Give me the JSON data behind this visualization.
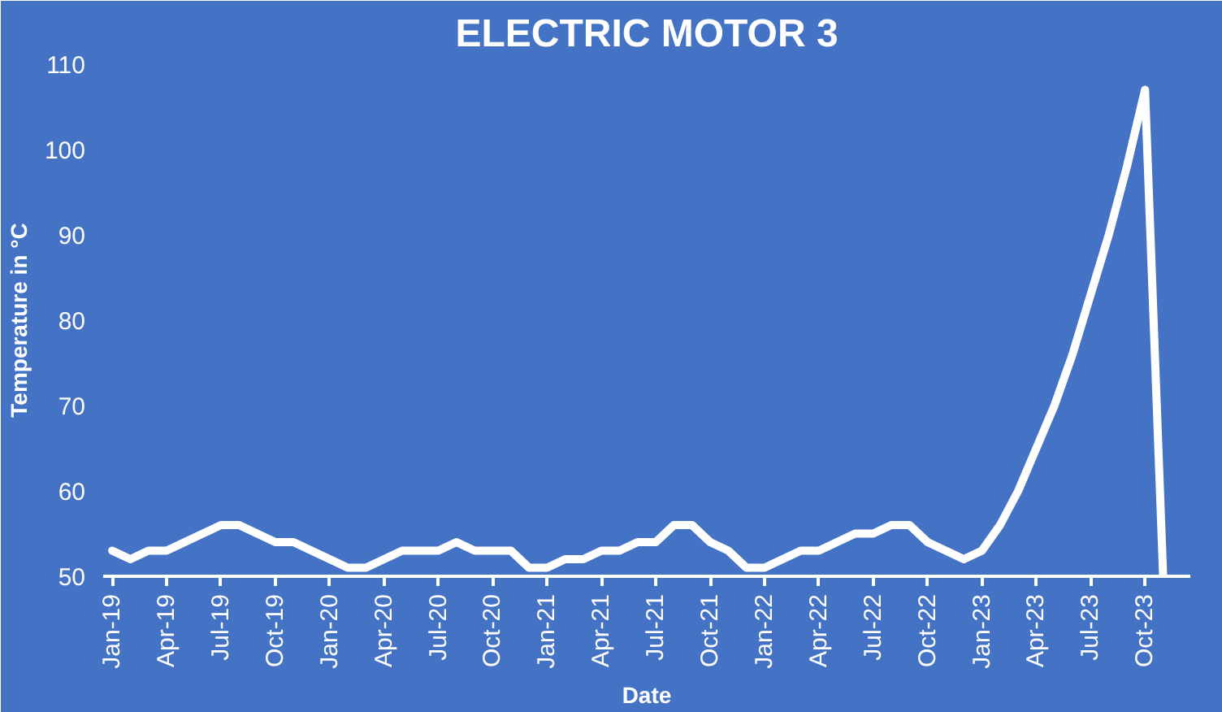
{
  "chart_data": {
    "type": "line",
    "title": "ELECTRIC MOTOR 3",
    "xlabel": "Date",
    "ylabel": "Temperature in °C",
    "categories": [
      "Jan-19",
      null,
      null,
      "Apr-19",
      null,
      null,
      "Jul-19",
      null,
      null,
      "Oct-19",
      null,
      null,
      "Jan-20",
      null,
      null,
      "Apr-20",
      null,
      null,
      "Jul-20",
      null,
      null,
      "Oct-20",
      null,
      null,
      "Jan-21",
      null,
      null,
      "Apr-21",
      null,
      null,
      "Jul-21",
      null,
      null,
      "Oct-21",
      null,
      null,
      "Jan-22",
      null,
      null,
      "Apr-22",
      null,
      null,
      "Jul-22",
      null,
      null,
      "Oct-22",
      null,
      null,
      "Jan-23",
      null,
      null,
      "Apr-23",
      null,
      null,
      "Jul-23",
      null,
      null,
      "Oct-23",
      null,
      null
    ],
    "values": [
      53,
      52,
      53,
      53,
      54,
      55,
      56,
      56,
      55,
      54,
      54,
      53,
      52,
      51,
      51,
      52,
      53,
      53,
      53,
      54,
      53,
      53,
      53,
      51,
      51,
      52,
      52,
      53,
      53,
      54,
      54,
      56,
      56,
      54,
      53,
      51,
      51,
      52,
      53,
      53,
      54,
      55,
      55,
      56,
      56,
      54,
      53,
      52,
      53,
      56,
      60,
      65,
      70,
      76,
      83,
      90,
      98,
      107,
      50,
      null
    ],
    "color": "#ffffff",
    "ylim": [
      50,
      110
    ],
    "yticks": [
      50,
      60,
      70,
      80,
      90,
      100,
      110
    ],
    "grid": false,
    "marker": "none",
    "line_style": "solid"
  }
}
